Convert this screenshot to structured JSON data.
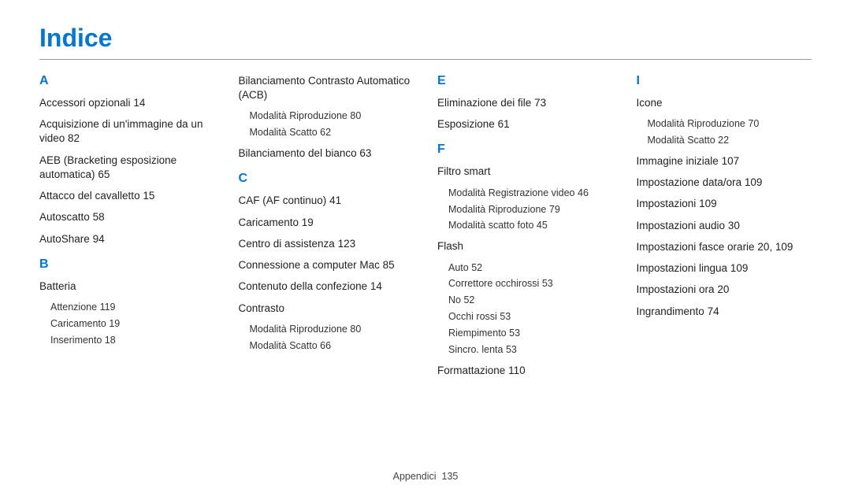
{
  "title": "Indice",
  "footer": {
    "section": "Appendici",
    "page": "135"
  },
  "colors": {
    "accent": "#0077d4",
    "text": "#222222",
    "rule": "#999999"
  },
  "columns": [
    {
      "groups": [
        {
          "letter": "A",
          "items": [
            {
              "label": "Accessori opzionali",
              "page": "14"
            },
            {
              "label": "Acquisizione di un'immagine da un video",
              "page": "82"
            },
            {
              "label": "AEB (Bracketing esposizione automatica)",
              "page": "65"
            },
            {
              "label": "Attacco del cavalletto",
              "page": "15"
            },
            {
              "label": "Autoscatto",
              "page": "58"
            },
            {
              "label": "AutoShare",
              "page": "94"
            }
          ]
        },
        {
          "letter": "B",
          "items": [
            {
              "label": "Batteria",
              "subs": [
                {
                  "label": "Attenzione",
                  "page": "119"
                },
                {
                  "label": "Caricamento",
                  "page": "19"
                },
                {
                  "label": "Inserimento",
                  "page": "18"
                }
              ]
            }
          ]
        }
      ]
    },
    {
      "groups": [
        {
          "letter": "",
          "items": [
            {
              "label": "Bilanciamento Contrasto Automatico (ACB)",
              "subs": [
                {
                  "label": "Modalità Riproduzione",
                  "page": "80"
                },
                {
                  "label": "Modalità Scatto",
                  "page": "62"
                }
              ]
            },
            {
              "label": "Bilanciamento del bianco",
              "page": "63"
            }
          ]
        },
        {
          "letter": "C",
          "items": [
            {
              "label": "CAF (AF continuo)",
              "page": "41"
            },
            {
              "label": "Caricamento",
              "page": "19"
            },
            {
              "label": "Centro di assistenza",
              "page": "123"
            },
            {
              "label": "Connessione a computer Mac",
              "page": "85"
            },
            {
              "label": "Contenuto della confezione",
              "page": "14"
            },
            {
              "label": "Contrasto",
              "subs": [
                {
                  "label": "Modalità Riproduzione",
                  "page": "80"
                },
                {
                  "label": "Modalità Scatto",
                  "page": "66"
                }
              ]
            }
          ]
        }
      ]
    },
    {
      "groups": [
        {
          "letter": "E",
          "items": [
            {
              "label": "Eliminazione dei ﬁle",
              "page": "73"
            },
            {
              "label": "Esposizione",
              "page": "61"
            }
          ]
        },
        {
          "letter": "F",
          "items": [
            {
              "label": "Filtro smart",
              "subs": [
                {
                  "label": "Modalità Registrazione video",
                  "page": "46"
                },
                {
                  "label": "Modalità Riproduzione",
                  "page": "79"
                },
                {
                  "label": "Modalità scatto foto",
                  "page": "45"
                }
              ]
            },
            {
              "label": "Flash",
              "subs": [
                {
                  "label": "Auto",
                  "page": "52"
                },
                {
                  "label": "Correttore occhirossi",
                  "page": "53"
                },
                {
                  "label": "No",
                  "page": "52"
                },
                {
                  "label": "Occhi rossi",
                  "page": "53"
                },
                {
                  "label": "Riempimento",
                  "page": "53"
                },
                {
                  "label": "Sincro. lenta",
                  "page": "53"
                }
              ]
            },
            {
              "label": "Formattazione",
              "page": "110"
            }
          ]
        }
      ]
    },
    {
      "groups": [
        {
          "letter": "I",
          "items": [
            {
              "label": "Icone",
              "subs": [
                {
                  "label": "Modalità Riproduzione",
                  "page": "70"
                },
                {
                  "label": "Modalità Scatto",
                  "page": "22"
                }
              ]
            },
            {
              "label": "Immagine iniziale",
              "page": "107"
            },
            {
              "label": "Impostazione data/ora",
              "page": "109"
            },
            {
              "label": "Impostazioni",
              "page": "109"
            },
            {
              "label": "Impostazioni audio",
              "page": "30"
            },
            {
              "label": "Impostazioni fasce orarie",
              "page": "20, 109"
            },
            {
              "label": "Impostazioni lingua",
              "page": "109"
            },
            {
              "label": "Impostazioni ora",
              "page": "20"
            },
            {
              "label": "Ingrandimento",
              "page": "74"
            }
          ]
        }
      ]
    }
  ]
}
